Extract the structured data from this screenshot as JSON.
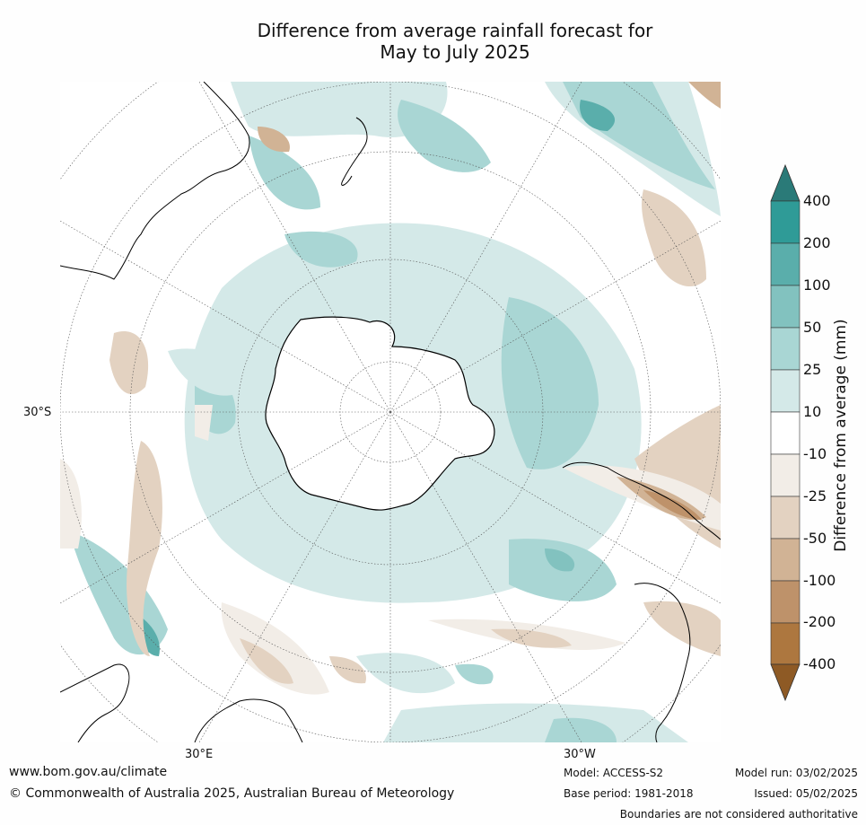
{
  "title_line1": "Difference from average rainfall forecast for",
  "title_line2": "May to July 2025",
  "map": {
    "latitude_label": "30°S",
    "longitude_labels": [
      "30°E",
      "30°W"
    ]
  },
  "legend": {
    "title": "Difference from average (mm)",
    "ticks": [
      "400",
      "200",
      "100",
      "50",
      "25",
      "10",
      "-10",
      "-25",
      "-50",
      "-100",
      "-200",
      "-400"
    ],
    "colors": {
      "over_max": "#2a7a78",
      "400_200": "#2f9b97",
      "200_100": "#5aaeab",
      "100_50": "#82c2bf",
      "50_25": "#a9d6d4",
      "25_10": "#d4e9e8",
      "10_-10": "#ffffff",
      "-10_-25": "#f2ede7",
      "-25_-50": "#e3d2c1",
      "-50_-100": "#d1b395",
      "-100_-200": "#be926a",
      "-200_-400": "#ad773f",
      "under_min": "#8e5a25"
    }
  },
  "footer": {
    "website": "www.bom.gov.au/climate",
    "copyright": "© Commonwealth of Australia 2025, Australian Bureau of Meteorology",
    "model": "Model: ACCESS-S2",
    "base_period": "Base period: 1981-2018",
    "model_run": "Model run: 03/02/2025",
    "issued": "Issued: 05/02/2025",
    "disclaimer": "Boundaries are not considered authoritative"
  }
}
